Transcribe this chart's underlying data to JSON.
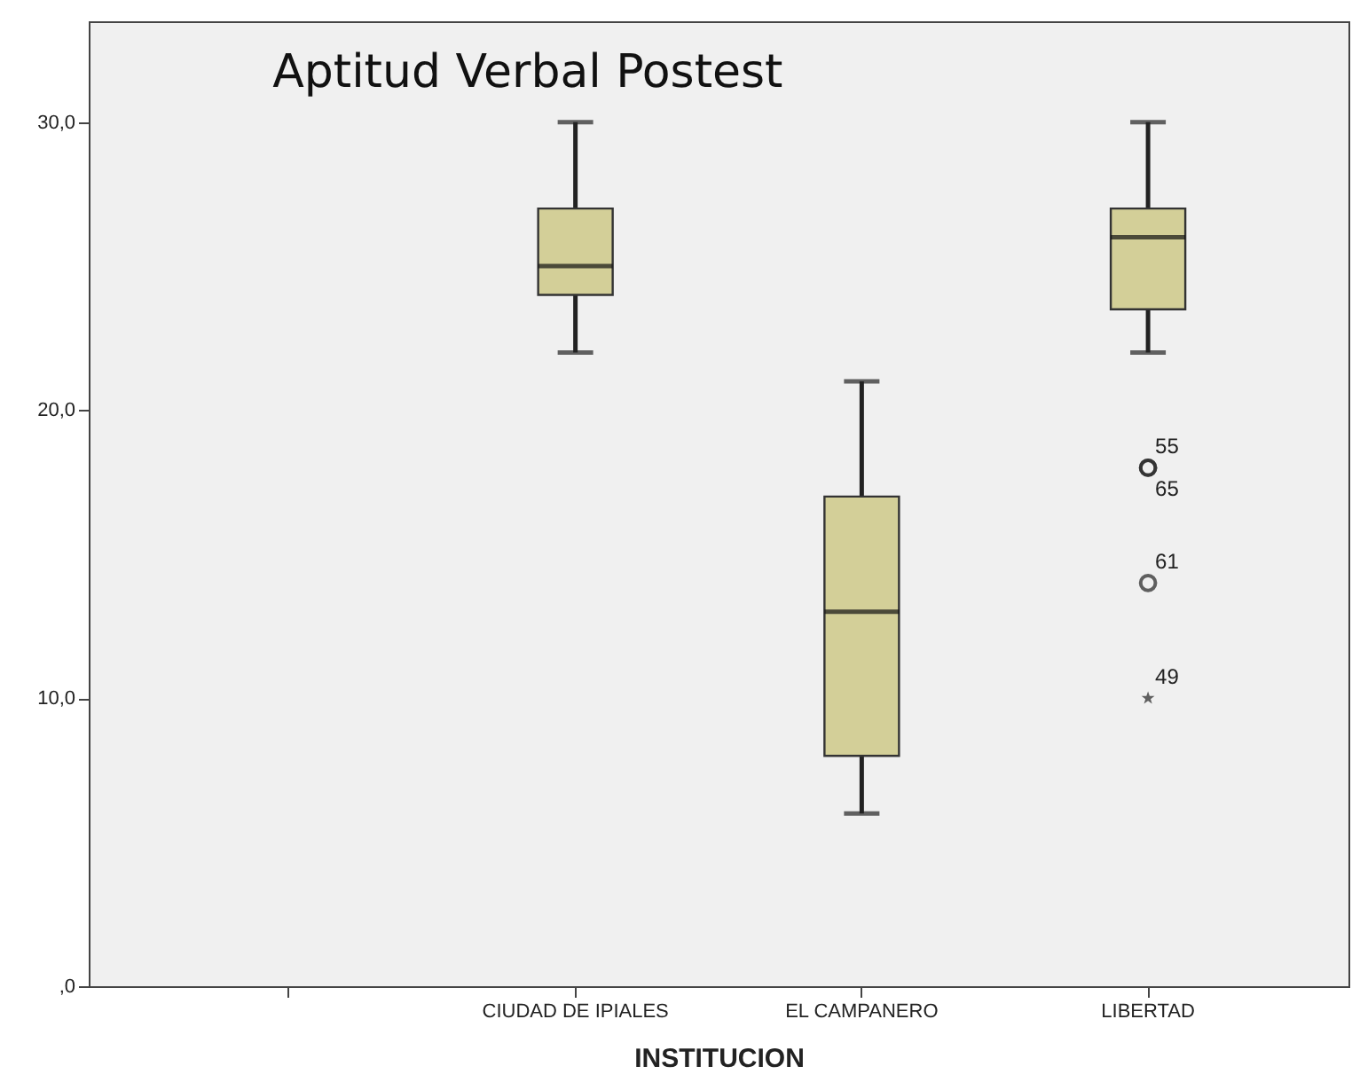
{
  "chart_data": {
    "type": "box",
    "title": "Aptitud Verbal Postest",
    "xlabel": "INSTITUCION",
    "categories": [
      null,
      "CIUDAD DE IPIALES",
      "EL CAMPANERO",
      "LIBERTAD"
    ],
    "series": [
      {
        "color": "#d3cf98",
        "boxes": [
          null,
          {
            "low": 22,
            "q1": 24,
            "median": 25,
            "q3": 27,
            "high": 30
          },
          {
            "low": 6,
            "q1": 8,
            "median": 13,
            "q3": 17,
            "high": 21
          },
          {
            "low": 22,
            "q1": 23.5,
            "median": 26,
            "q3": 27,
            "high": 30,
            "outliers": [
              18,
              18,
              14,
              10
            ]
          }
        ]
      }
    ],
    "ylim": [
      0,
      33.5
    ],
    "yticks": [
      {
        "value": 0,
        "label": ",0"
      },
      {
        "value": 10,
        "label": "10,0"
      },
      {
        "value": 20,
        "label": "20,0"
      },
      {
        "value": 30,
        "label": "30,0"
      }
    ],
    "grid": false,
    "annotations": [
      "55",
      "65",
      "61",
      "49"
    ]
  }
}
